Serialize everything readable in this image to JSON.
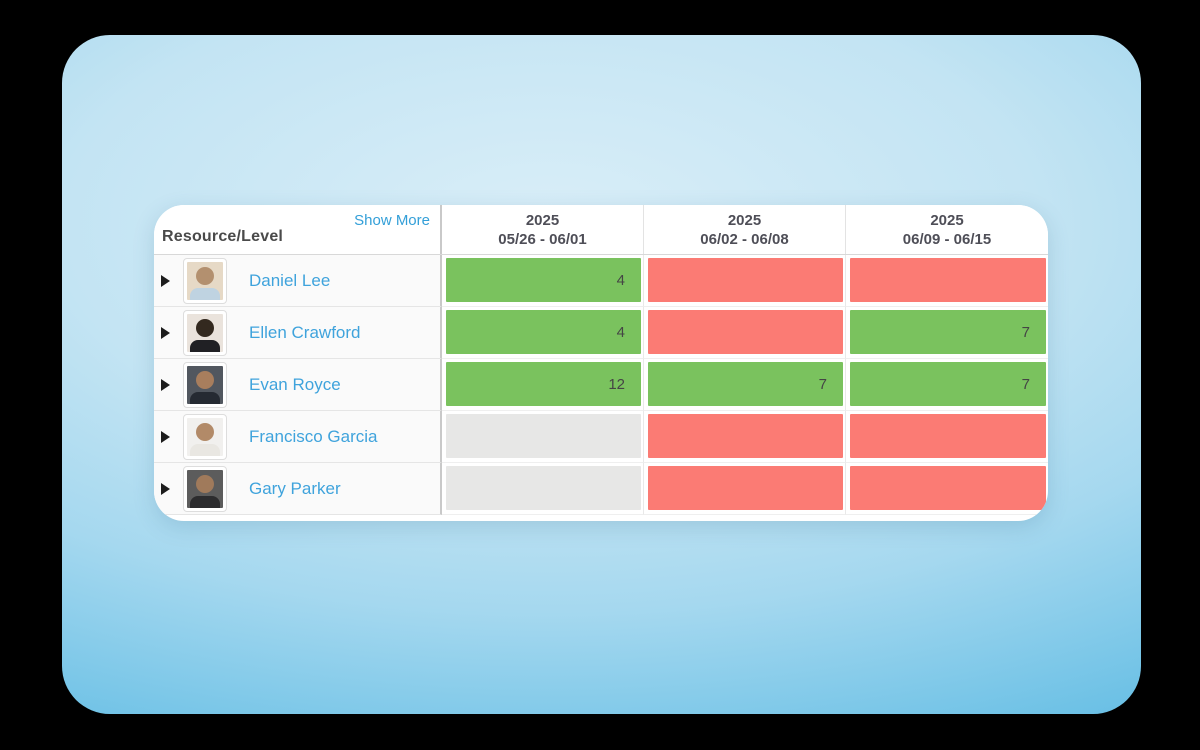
{
  "table": {
    "resource_header": "Resource/Level",
    "show_more_label": "Show More",
    "columns": [
      {
        "year": "2025",
        "range": "05/26 - 06/01"
      },
      {
        "year": "2025",
        "range": "06/02 - 06/08"
      },
      {
        "year": "2025",
        "range": "06/09 - 06/15"
      }
    ],
    "rows": [
      {
        "name": "Daniel Lee",
        "avatar": "daniel-lee",
        "cells": [
          {
            "value": "4",
            "color": "green"
          },
          {
            "value": "",
            "color": "red"
          },
          {
            "value": "",
            "color": "red"
          }
        ]
      },
      {
        "name": "Ellen Crawford",
        "avatar": "ellen-crawford",
        "cells": [
          {
            "value": "4",
            "color": "green"
          },
          {
            "value": "",
            "color": "red"
          },
          {
            "value": "7",
            "color": "green"
          }
        ]
      },
      {
        "name": "Evan Royce",
        "avatar": "evan-royce",
        "cells": [
          {
            "value": "12",
            "color": "green"
          },
          {
            "value": "7",
            "color": "green"
          },
          {
            "value": "7",
            "color": "green"
          }
        ]
      },
      {
        "name": "Francisco Garcia",
        "avatar": "francisco-garcia",
        "cells": [
          {
            "value": "",
            "color": "gray"
          },
          {
            "value": "",
            "color": "red"
          },
          {
            "value": "",
            "color": "red"
          }
        ]
      },
      {
        "name": "Gary Parker",
        "avatar": "gary-parker",
        "cells": [
          {
            "value": "",
            "color": "gray"
          },
          {
            "value": "",
            "color": "red"
          },
          {
            "value": "",
            "color": "red"
          }
        ]
      }
    ],
    "colors": {
      "allocation_ok_green": "#7ac25e",
      "allocation_over_red": "#fb7b74",
      "allocation_empty_gray": "#e7e7e6",
      "link_blue": "#339fd8",
      "name_blue": "#3fa3dc",
      "backdrop_blue": "#54b3e0"
    }
  }
}
